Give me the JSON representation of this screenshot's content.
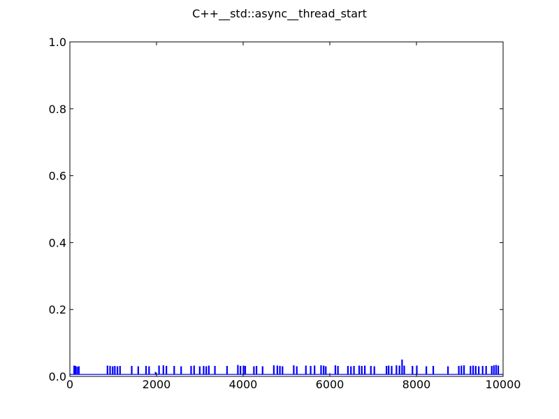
{
  "chart_data": {
    "type": "line",
    "title": "C++__std::async__thread_start",
    "xlabel": "",
    "ylabel": "",
    "xlim": [
      0,
      10000
    ],
    "ylim": [
      0.0,
      1.0
    ],
    "grid": false,
    "x_ticks": [
      0,
      2000,
      4000,
      6000,
      8000,
      10000
    ],
    "x_tick_labels": [
      "0",
      "2000",
      "4000",
      "6000",
      "8000",
      "10000"
    ],
    "y_ticks": [
      0.0,
      0.2,
      0.4,
      0.6,
      0.8,
      1.0
    ],
    "y_tick_labels": [
      "0.0",
      "0.2",
      "0.4",
      "0.6",
      "0.8",
      "1.0"
    ],
    "baseline": 0.006,
    "sample_count": 10000,
    "series": [
      {
        "color": "#0000ff",
        "spikes": [
          {
            "x": 90,
            "y": 0.031
          },
          {
            "x": 120,
            "y": 0.03
          },
          {
            "x": 160,
            "y": 0.028
          },
          {
            "x": 200,
            "y": 0.029
          },
          {
            "x": 860,
            "y": 0.031
          },
          {
            "x": 920,
            "y": 0.03
          },
          {
            "x": 980,
            "y": 0.029
          },
          {
            "x": 1030,
            "y": 0.03
          },
          {
            "x": 1090,
            "y": 0.029
          },
          {
            "x": 1150,
            "y": 0.03
          },
          {
            "x": 1420,
            "y": 0.03
          },
          {
            "x": 1570,
            "y": 0.029
          },
          {
            "x": 1750,
            "y": 0.03
          },
          {
            "x": 1820,
            "y": 0.029
          },
          {
            "x": 1970,
            "y": 0.012
          },
          {
            "x": 2050,
            "y": 0.031
          },
          {
            "x": 2150,
            "y": 0.032
          },
          {
            "x": 2220,
            "y": 0.03
          },
          {
            "x": 2400,
            "y": 0.03
          },
          {
            "x": 2560,
            "y": 0.029
          },
          {
            "x": 2790,
            "y": 0.03
          },
          {
            "x": 2860,
            "y": 0.031
          },
          {
            "x": 2990,
            "y": 0.029
          },
          {
            "x": 3080,
            "y": 0.03
          },
          {
            "x": 3140,
            "y": 0.029
          },
          {
            "x": 3200,
            "y": 0.031
          },
          {
            "x": 3340,
            "y": 0.03
          },
          {
            "x": 3620,
            "y": 0.03
          },
          {
            "x": 3870,
            "y": 0.033
          },
          {
            "x": 3930,
            "y": 0.03
          },
          {
            "x": 4000,
            "y": 0.031
          },
          {
            "x": 4040,
            "y": 0.03
          },
          {
            "x": 4240,
            "y": 0.029
          },
          {
            "x": 4300,
            "y": 0.03
          },
          {
            "x": 4440,
            "y": 0.029
          },
          {
            "x": 4700,
            "y": 0.032
          },
          {
            "x": 4780,
            "y": 0.031
          },
          {
            "x": 4840,
            "y": 0.03
          },
          {
            "x": 4900,
            "y": 0.029
          },
          {
            "x": 5160,
            "y": 0.032
          },
          {
            "x": 5230,
            "y": 0.029
          },
          {
            "x": 5440,
            "y": 0.031
          },
          {
            "x": 5550,
            "y": 0.03
          },
          {
            "x": 5640,
            "y": 0.031
          },
          {
            "x": 5790,
            "y": 0.032
          },
          {
            "x": 5850,
            "y": 0.031
          },
          {
            "x": 5900,
            "y": 0.029
          },
          {
            "x": 6120,
            "y": 0.032
          },
          {
            "x": 6180,
            "y": 0.03
          },
          {
            "x": 6410,
            "y": 0.03
          },
          {
            "x": 6480,
            "y": 0.029
          },
          {
            "x": 6550,
            "y": 0.03
          },
          {
            "x": 6670,
            "y": 0.031
          },
          {
            "x": 6730,
            "y": 0.03
          },
          {
            "x": 6800,
            "y": 0.031
          },
          {
            "x": 6940,
            "y": 0.03
          },
          {
            "x": 7020,
            "y": 0.029
          },
          {
            "x": 7300,
            "y": 0.03
          },
          {
            "x": 7350,
            "y": 0.031
          },
          {
            "x": 7420,
            "y": 0.03
          },
          {
            "x": 7530,
            "y": 0.032
          },
          {
            "x": 7600,
            "y": 0.031
          },
          {
            "x": 7660,
            "y": 0.049
          },
          {
            "x": 7710,
            "y": 0.031
          },
          {
            "x": 7900,
            "y": 0.03
          },
          {
            "x": 8000,
            "y": 0.031
          },
          {
            "x": 8220,
            "y": 0.029
          },
          {
            "x": 8380,
            "y": 0.03
          },
          {
            "x": 8720,
            "y": 0.029
          },
          {
            "x": 8970,
            "y": 0.03
          },
          {
            "x": 9030,
            "y": 0.031
          },
          {
            "x": 9090,
            "y": 0.032
          },
          {
            "x": 9240,
            "y": 0.03
          },
          {
            "x": 9300,
            "y": 0.031
          },
          {
            "x": 9360,
            "y": 0.03
          },
          {
            "x": 9430,
            "y": 0.029
          },
          {
            "x": 9520,
            "y": 0.03
          },
          {
            "x": 9600,
            "y": 0.03
          },
          {
            "x": 9730,
            "y": 0.03
          },
          {
            "x": 9780,
            "y": 0.032
          },
          {
            "x": 9830,
            "y": 0.033
          },
          {
            "x": 9880,
            "y": 0.031
          }
        ]
      }
    ]
  }
}
